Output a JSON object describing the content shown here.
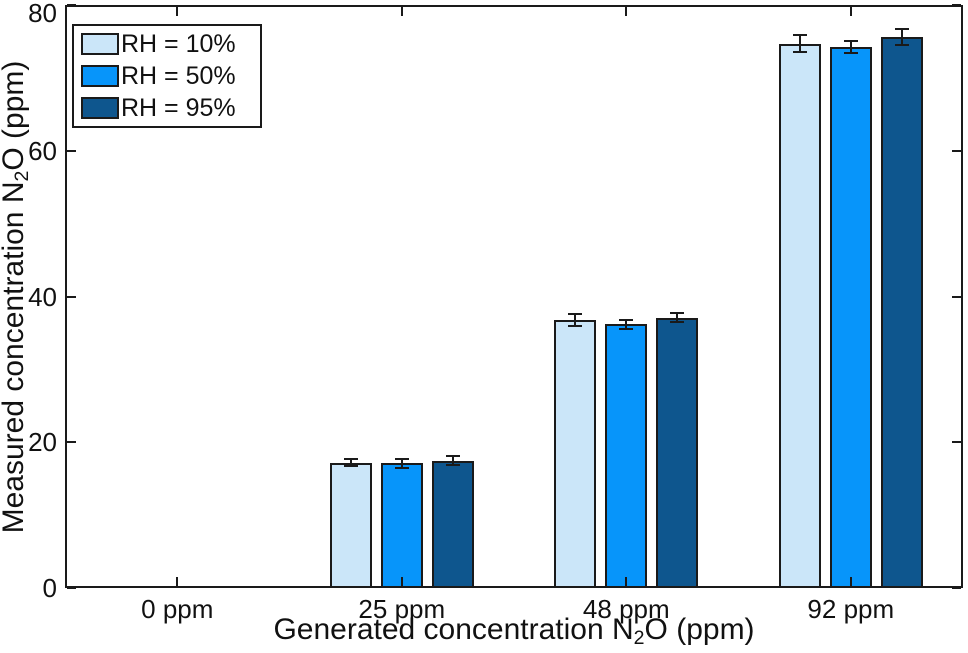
{
  "figure": {
    "background": "#ffffff",
    "axis_color": "#1a1a1a"
  },
  "chart_data": {
    "type": "bar",
    "title": "",
    "xlabel_prefix": "Generated concentration N",
    "xlabel_sub": "2",
    "xlabel_suffix": "O (ppm)",
    "ylabel_prefix": "Measured concentration N",
    "ylabel_sub": "2",
    "ylabel_suffix": "O (ppm)",
    "categories": [
      "0 ppm",
      "25 ppm",
      "48 ppm",
      "92 ppm"
    ],
    "series": [
      {
        "name": "RH = 10%",
        "color": "#cbe6f9",
        "values": [
          0,
          17.2,
          36.8,
          74.7
        ],
        "errors": [
          0,
          0.5,
          0.8,
          1.2
        ]
      },
      {
        "name": "RH = 50%",
        "color": "#0795fa",
        "values": [
          0,
          17.1,
          36.2,
          74.2
        ],
        "errors": [
          0,
          0.6,
          0.6,
          0.8
        ]
      },
      {
        "name": "RH = 95%",
        "color": "#0e568e",
        "values": [
          0,
          17.5,
          37.1,
          75.6
        ],
        "errors": [
          0,
          0.6,
          0.6,
          1.1
        ]
      }
    ],
    "ylim": [
      0,
      80
    ],
    "yticks": [
      0,
      20,
      40,
      60,
      80
    ],
    "grid": false,
    "legend_position": "top-left",
    "error_bars": true,
    "tick_direction": "in",
    "box": true
  }
}
